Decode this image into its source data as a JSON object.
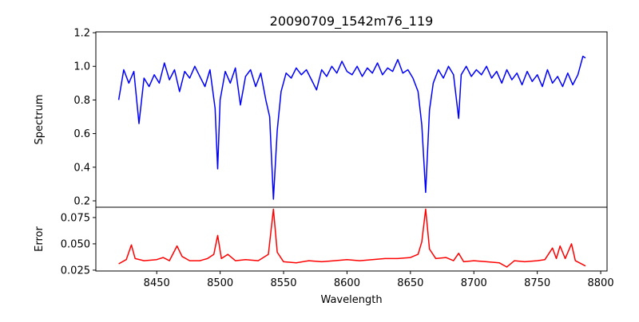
{
  "chart_data": [
    {
      "type": "line",
      "title": "20090709_1542m76_119",
      "xlabel": "",
      "ylabel": "Spectrum",
      "xlim": [
        8402,
        8805
      ],
      "ylim": [
        0.162,
        1.205
      ],
      "yticks": [
        "0.2",
        "0.4",
        "0.6",
        "0.8",
        "1.0",
        "1.2"
      ],
      "ytick_values": [
        0.2,
        0.4,
        0.6,
        0.8,
        1.0,
        1.2
      ],
      "color": "#0000ff",
      "grid": false,
      "series": [
        {
          "name": "spectrum",
          "x": [
            8420,
            8424,
            8428,
            8432,
            8436,
            8440,
            8444,
            8448,
            8452,
            8456,
            8460,
            8464,
            8468,
            8472,
            8476,
            8480,
            8484,
            8488,
            8492,
            8496,
            8498,
            8500,
            8504,
            8508,
            8512,
            8516,
            8520,
            8524,
            8528,
            8532,
            8536,
            8539,
            8542,
            8545,
            8548,
            8552,
            8556,
            8560,
            8564,
            8568,
            8572,
            8576,
            8580,
            8584,
            8588,
            8592,
            8596,
            8600,
            8604,
            8608,
            8612,
            8616,
            8620,
            8624,
            8628,
            8632,
            8636,
            8640,
            8644,
            8648,
            8652,
            8656,
            8659,
            8662,
            8665,
            8668,
            8672,
            8676,
            8680,
            8684,
            8688,
            8690,
            8694,
            8698,
            8702,
            8706,
            8710,
            8714,
            8718,
            8722,
            8726,
            8730,
            8734,
            8738,
            8742,
            8746,
            8750,
            8754,
            8758,
            8762,
            8766,
            8770,
            8774,
            8778,
            8782,
            8786,
            8788
          ],
          "y": [
            0.8,
            0.98,
            0.9,
            0.97,
            0.66,
            0.93,
            0.88,
            0.95,
            0.9,
            1.02,
            0.92,
            0.98,
            0.85,
            0.97,
            0.93,
            1.0,
            0.94,
            0.88,
            0.98,
            0.75,
            0.39,
            0.8,
            0.97,
            0.9,
            0.99,
            0.77,
            0.94,
            0.98,
            0.88,
            0.96,
            0.8,
            0.7,
            0.21,
            0.62,
            0.85,
            0.96,
            0.93,
            0.99,
            0.95,
            0.98,
            0.92,
            0.86,
            0.98,
            0.94,
            1.0,
            0.96,
            1.03,
            0.97,
            0.95,
            1.0,
            0.94,
            0.99,
            0.96,
            1.02,
            0.95,
            0.99,
            0.97,
            1.04,
            0.96,
            0.98,
            0.93,
            0.85,
            0.65,
            0.25,
            0.74,
            0.9,
            0.98,
            0.93,
            1.0,
            0.95,
            0.69,
            0.95,
            1.0,
            0.94,
            0.98,
            0.95,
            1.0,
            0.93,
            0.97,
            0.9,
            0.98,
            0.92,
            0.96,
            0.89,
            0.97,
            0.91,
            0.95,
            0.88,
            0.98,
            0.9,
            0.94,
            0.88,
            0.96,
            0.89,
            0.95,
            1.06,
            1.05
          ]
        }
      ]
    },
    {
      "type": "line",
      "xlabel": "Wavelength",
      "ylabel": "Error",
      "xlim": [
        8402,
        8805
      ],
      "ylim": [
        0.0242,
        0.0848
      ],
      "xticks": [
        "8450",
        "8500",
        "8550",
        "8600",
        "8650",
        "8700",
        "8750",
        "8800"
      ],
      "xtick_values": [
        8450,
        8500,
        8550,
        8600,
        8650,
        8700,
        8750,
        8800
      ],
      "yticks": [
        "0.025",
        "0.050",
        "0.075"
      ],
      "ytick_values": [
        0.025,
        0.05,
        0.075
      ],
      "color": "#ff0000",
      "grid": false,
      "series": [
        {
          "name": "error",
          "x": [
            8420,
            8426,
            8430,
            8433,
            8440,
            8450,
            8455,
            8460,
            8466,
            8470,
            8476,
            8484,
            8490,
            8495,
            8498,
            8501,
            8506,
            8512,
            8520,
            8530,
            8538,
            8542,
            8545,
            8550,
            8560,
            8570,
            8580,
            8590,
            8600,
            8610,
            8620,
            8630,
            8640,
            8650,
            8656,
            8659,
            8662,
            8665,
            8670,
            8678,
            8684,
            8688,
            8692,
            8700,
            8710,
            8720,
            8726,
            8732,
            8740,
            8750,
            8756,
            8762,
            8765,
            8768,
            8772,
            8777,
            8780,
            8788
          ],
          "y": [
            0.031,
            0.035,
            0.049,
            0.036,
            0.034,
            0.035,
            0.037,
            0.034,
            0.048,
            0.038,
            0.034,
            0.034,
            0.036,
            0.04,
            0.058,
            0.036,
            0.04,
            0.034,
            0.035,
            0.034,
            0.04,
            0.083,
            0.042,
            0.033,
            0.032,
            0.034,
            0.033,
            0.034,
            0.035,
            0.034,
            0.035,
            0.036,
            0.036,
            0.037,
            0.04,
            0.052,
            0.083,
            0.045,
            0.036,
            0.037,
            0.034,
            0.041,
            0.033,
            0.034,
            0.033,
            0.032,
            0.028,
            0.034,
            0.033,
            0.034,
            0.035,
            0.046,
            0.036,
            0.048,
            0.036,
            0.05,
            0.034,
            0.029
          ]
        }
      ]
    }
  ]
}
